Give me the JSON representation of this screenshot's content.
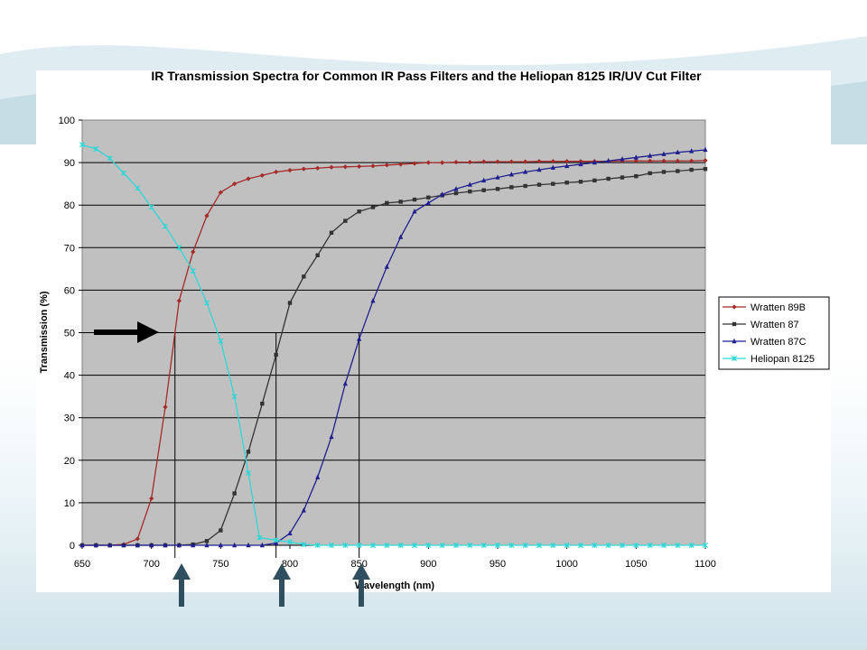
{
  "chart_data": {
    "type": "line",
    "title": "IR Transmission Spectra for Common IR Pass Filters and the Heliopan 8125 IR/UV Cut Filter",
    "xlabel": "Wavelength (nm)",
    "ylabel": "Transmission (%)",
    "xlim": [
      650,
      1100
    ],
    "ylim": [
      0,
      100
    ],
    "x_ticks": [
      650,
      700,
      750,
      800,
      850,
      900,
      950,
      1000,
      1050,
      1100
    ],
    "y_ticks": [
      0,
      10,
      20,
      30,
      40,
      50,
      60,
      70,
      80,
      90,
      100
    ],
    "grid": true,
    "legend_position": "right",
    "plot_background": "#c0c0c0",
    "series": [
      {
        "name": "Wratten 89B",
        "color": "#a52a2a",
        "marker": "diamond",
        "points": [
          [
            650,
            0
          ],
          [
            660,
            0
          ],
          [
            670,
            0
          ],
          [
            680,
            0.2
          ],
          [
            690,
            1.5
          ],
          [
            700,
            11
          ],
          [
            710,
            32.5
          ],
          [
            720,
            57.5
          ],
          [
            730,
            69
          ],
          [
            740,
            77.5
          ],
          [
            750,
            83
          ],
          [
            760,
            85
          ],
          [
            770,
            86.2
          ],
          [
            780,
            87
          ],
          [
            790,
            87.8
          ],
          [
            800,
            88.2
          ],
          [
            810,
            88.5
          ],
          [
            820,
            88.7
          ],
          [
            830,
            88.9
          ],
          [
            840,
            89
          ],
          [
            850,
            89.1
          ],
          [
            860,
            89.2
          ],
          [
            870,
            89.4
          ],
          [
            880,
            89.6
          ],
          [
            890,
            89.8
          ],
          [
            900,
            90
          ],
          [
            910,
            90
          ],
          [
            920,
            90.1
          ],
          [
            930,
            90.1
          ],
          [
            940,
            90.2
          ],
          [
            950,
            90.2
          ],
          [
            960,
            90.2
          ],
          [
            970,
            90.2
          ],
          [
            980,
            90.3
          ],
          [
            990,
            90.3
          ],
          [
            1000,
            90.3
          ],
          [
            1010,
            90.3
          ],
          [
            1020,
            90.3
          ],
          [
            1030,
            90.3
          ],
          [
            1040,
            90.4
          ],
          [
            1050,
            90.4
          ],
          [
            1060,
            90.4
          ],
          [
            1070,
            90.4
          ],
          [
            1080,
            90.4
          ],
          [
            1090,
            90.4
          ],
          [
            1100,
            90.5
          ]
        ]
      },
      {
        "name": "Wratten 87",
        "color": "#333333",
        "marker": "square",
        "points": [
          [
            650,
            0
          ],
          [
            660,
            0
          ],
          [
            670,
            0
          ],
          [
            680,
            0
          ],
          [
            690,
            0
          ],
          [
            700,
            0
          ],
          [
            710,
            0
          ],
          [
            720,
            0
          ],
          [
            730,
            0.2
          ],
          [
            740,
            1
          ],
          [
            750,
            3.5
          ],
          [
            760,
            12.2
          ],
          [
            770,
            22
          ],
          [
            780,
            33.3
          ],
          [
            790,
            44.8
          ],
          [
            800,
            57
          ],
          [
            810,
            63.2
          ],
          [
            820,
            68.2
          ],
          [
            830,
            73.5
          ],
          [
            840,
            76.3
          ],
          [
            850,
            78.5
          ],
          [
            860,
            79.5
          ],
          [
            870,
            80.5
          ],
          [
            880,
            80.8
          ],
          [
            890,
            81.3
          ],
          [
            900,
            81.8
          ],
          [
            910,
            82.3
          ],
          [
            920,
            82.8
          ],
          [
            930,
            83.2
          ],
          [
            940,
            83.5
          ],
          [
            950,
            83.8
          ],
          [
            960,
            84.2
          ],
          [
            970,
            84.5
          ],
          [
            980,
            84.8
          ],
          [
            990,
            85
          ],
          [
            1000,
            85.3
          ],
          [
            1010,
            85.5
          ],
          [
            1020,
            85.8
          ],
          [
            1030,
            86.2
          ],
          [
            1040,
            86.5
          ],
          [
            1050,
            86.8
          ],
          [
            1060,
            87.5
          ],
          [
            1070,
            87.8
          ],
          [
            1080,
            88
          ],
          [
            1090,
            88.3
          ],
          [
            1100,
            88.5
          ]
        ]
      },
      {
        "name": "Wratten 87C",
        "color": "#1f1f8f",
        "marker": "triangle",
        "points": [
          [
            650,
            0
          ],
          [
            660,
            0
          ],
          [
            670,
            0
          ],
          [
            680,
            0
          ],
          [
            690,
            0
          ],
          [
            700,
            0
          ],
          [
            710,
            0
          ],
          [
            720,
            0
          ],
          [
            730,
            0
          ],
          [
            740,
            0
          ],
          [
            750,
            0
          ],
          [
            760,
            0
          ],
          [
            770,
            0
          ],
          [
            780,
            0
          ],
          [
            790,
            0.5
          ],
          [
            800,
            2.8
          ],
          [
            810,
            8.2
          ],
          [
            820,
            16
          ],
          [
            830,
            25.5
          ],
          [
            840,
            38
          ],
          [
            850,
            48.5
          ],
          [
            860,
            57.5
          ],
          [
            870,
            65.5
          ],
          [
            880,
            72.5
          ],
          [
            890,
            78.5
          ],
          [
            900,
            80.5
          ],
          [
            910,
            82.5
          ],
          [
            920,
            83.8
          ],
          [
            930,
            84.8
          ],
          [
            940,
            85.8
          ],
          [
            950,
            86.5
          ],
          [
            960,
            87.2
          ],
          [
            970,
            87.8
          ],
          [
            980,
            88.3
          ],
          [
            990,
            88.8
          ],
          [
            1000,
            89.2
          ],
          [
            1010,
            89.6
          ],
          [
            1020,
            90
          ],
          [
            1030,
            90.4
          ],
          [
            1040,
            90.8
          ],
          [
            1050,
            91.2
          ],
          [
            1060,
            91.6
          ],
          [
            1070,
            92
          ],
          [
            1080,
            92.4
          ],
          [
            1090,
            92.7
          ],
          [
            1100,
            93
          ]
        ]
      },
      {
        "name": "Heliopan 8125",
        "color": "#33d6d6",
        "marker": "star",
        "points": [
          [
            650,
            94.2
          ],
          [
            660,
            93.2
          ],
          [
            670,
            91
          ],
          [
            680,
            87.5
          ],
          [
            690,
            84
          ],
          [
            700,
            79.5
          ],
          [
            710,
            75
          ],
          [
            720,
            70
          ],
          [
            730,
            64.5
          ],
          [
            740,
            57
          ],
          [
            750,
            48
          ],
          [
            760,
            35
          ],
          [
            770,
            17
          ],
          [
            778,
            1.8
          ],
          [
            790,
            1.2
          ],
          [
            800,
            0.8
          ],
          [
            810,
            0.2
          ],
          [
            820,
            0
          ],
          [
            830,
            0
          ],
          [
            840,
            0
          ],
          [
            850,
            0
          ],
          [
            860,
            0
          ],
          [
            870,
            0
          ],
          [
            880,
            0
          ],
          [
            890,
            0
          ],
          [
            900,
            0
          ],
          [
            910,
            0
          ],
          [
            920,
            0
          ],
          [
            930,
            0
          ],
          [
            940,
            0
          ],
          [
            950,
            0
          ],
          [
            960,
            0
          ],
          [
            970,
            0
          ],
          [
            980,
            0
          ],
          [
            990,
            0
          ],
          [
            1000,
            0
          ],
          [
            1010,
            0
          ],
          [
            1020,
            0
          ],
          [
            1030,
            0
          ],
          [
            1040,
            0
          ],
          [
            1050,
            0
          ],
          [
            1060,
            0
          ],
          [
            1070,
            0
          ],
          [
            1080,
            0
          ],
          [
            1090,
            0
          ],
          [
            1100,
            0
          ]
        ]
      }
    ],
    "annotations": {
      "horizontal_arrow_level": 50,
      "vertical_markers_nm": [
        717,
        790,
        850
      ]
    }
  }
}
